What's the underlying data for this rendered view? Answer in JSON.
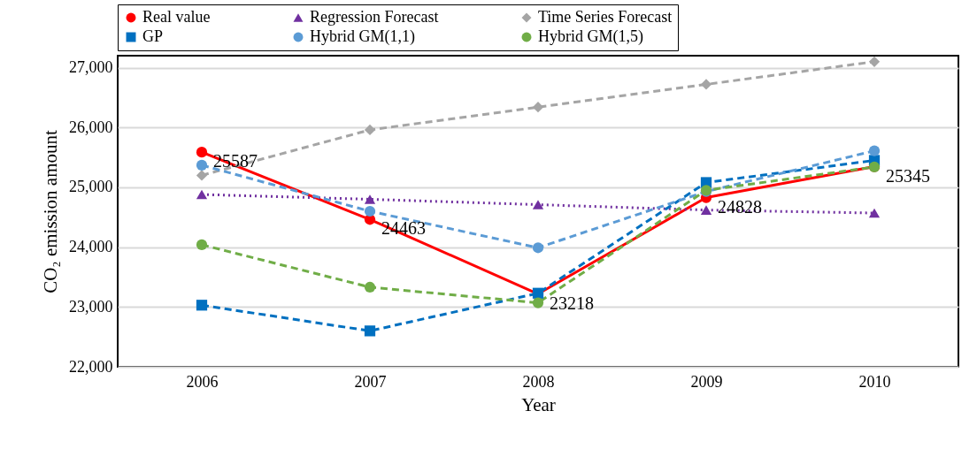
{
  "chart_data": {
    "type": "line",
    "xlabel": "Year",
    "ylabel": "CO₂ emission amount",
    "categories": [
      "2006",
      "2007",
      "2008",
      "2009",
      "2010"
    ],
    "ylim": [
      22000,
      27200
    ],
    "yticks": [
      {
        "value": 22000,
        "label": "22,000"
      },
      {
        "value": 23000,
        "label": "23,000"
      },
      {
        "value": 24000,
        "label": "24,000"
      },
      {
        "value": 25000,
        "label": "25,000"
      },
      {
        "value": 26000,
        "label": "26,000"
      },
      {
        "value": 27000,
        "label": "27,000"
      }
    ],
    "grid": "y",
    "legend": "top",
    "series": [
      {
        "name": "Real value",
        "color": "#ff0000",
        "marker": "circle",
        "line_style": "solid",
        "values": [
          25587,
          24463,
          23218,
          24828,
          25345
        ],
        "value_labels": [
          "25587",
          "24463",
          "23218",
          "24828",
          "25345"
        ]
      },
      {
        "name": "Regression Forecast",
        "color": "#7030a0",
        "marker": "triangle",
        "line_style": "dotted",
        "values": [
          24880,
          24800,
          24710,
          24620,
          24570
        ]
      },
      {
        "name": "Time Series Forecast",
        "color": "#a5a5a5",
        "marker": "diamond",
        "line_style": "dashed",
        "values": [
          25200,
          25960,
          26340,
          26720,
          27100
        ]
      },
      {
        "name": "GP",
        "color": "#0070c0",
        "marker": "square",
        "line_style": "dashed",
        "values": [
          23030,
          22600,
          23230,
          25080,
          25450
        ]
      },
      {
        "name": "Hybrid GM(1,1)",
        "color": "#5b9bd5",
        "marker": "circle",
        "line_style": "dashed",
        "values": [
          25370,
          24600,
          23990,
          24930,
          25610
        ]
      },
      {
        "name": "Hybrid GM(1,5)",
        "color": "#70ad47",
        "marker": "circle",
        "line_style": "dashed",
        "values": [
          24040,
          23330,
          23070,
          24950,
          25340
        ]
      }
    ]
  }
}
